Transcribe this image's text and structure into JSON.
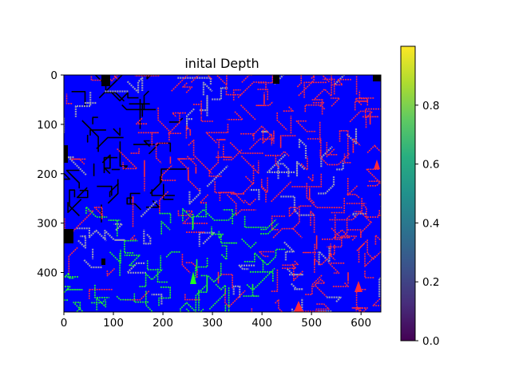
{
  "figure": {
    "title": "inital Depth"
  },
  "chart_data": {
    "type": "heatmap",
    "title": "inital Depth",
    "xlabel": "",
    "ylabel": "",
    "xlim": [
      0,
      640
    ],
    "ylim": [
      480,
      0
    ],
    "x_ticks": [
      0,
      100,
      200,
      300,
      400,
      500,
      600
    ],
    "y_ticks": [
      0,
      100,
      200,
      300,
      400
    ],
    "grid": false,
    "image_description_colors": {
      "background": "#0000ff",
      "edges_red": "#ff2a3c",
      "edges_green": "#22ff22",
      "edges_gray": "#9a9ab8",
      "dark_regions": "#000000"
    },
    "colorbar": {
      "colormap": "viridis",
      "range": [
        0.0,
        1.0
      ],
      "ticks": [
        0.0,
        0.2,
        0.4,
        0.6,
        0.8
      ],
      "tick_labels": [
        "0.0",
        "0.2",
        "0.4",
        "0.6",
        "0.8"
      ]
    }
  }
}
